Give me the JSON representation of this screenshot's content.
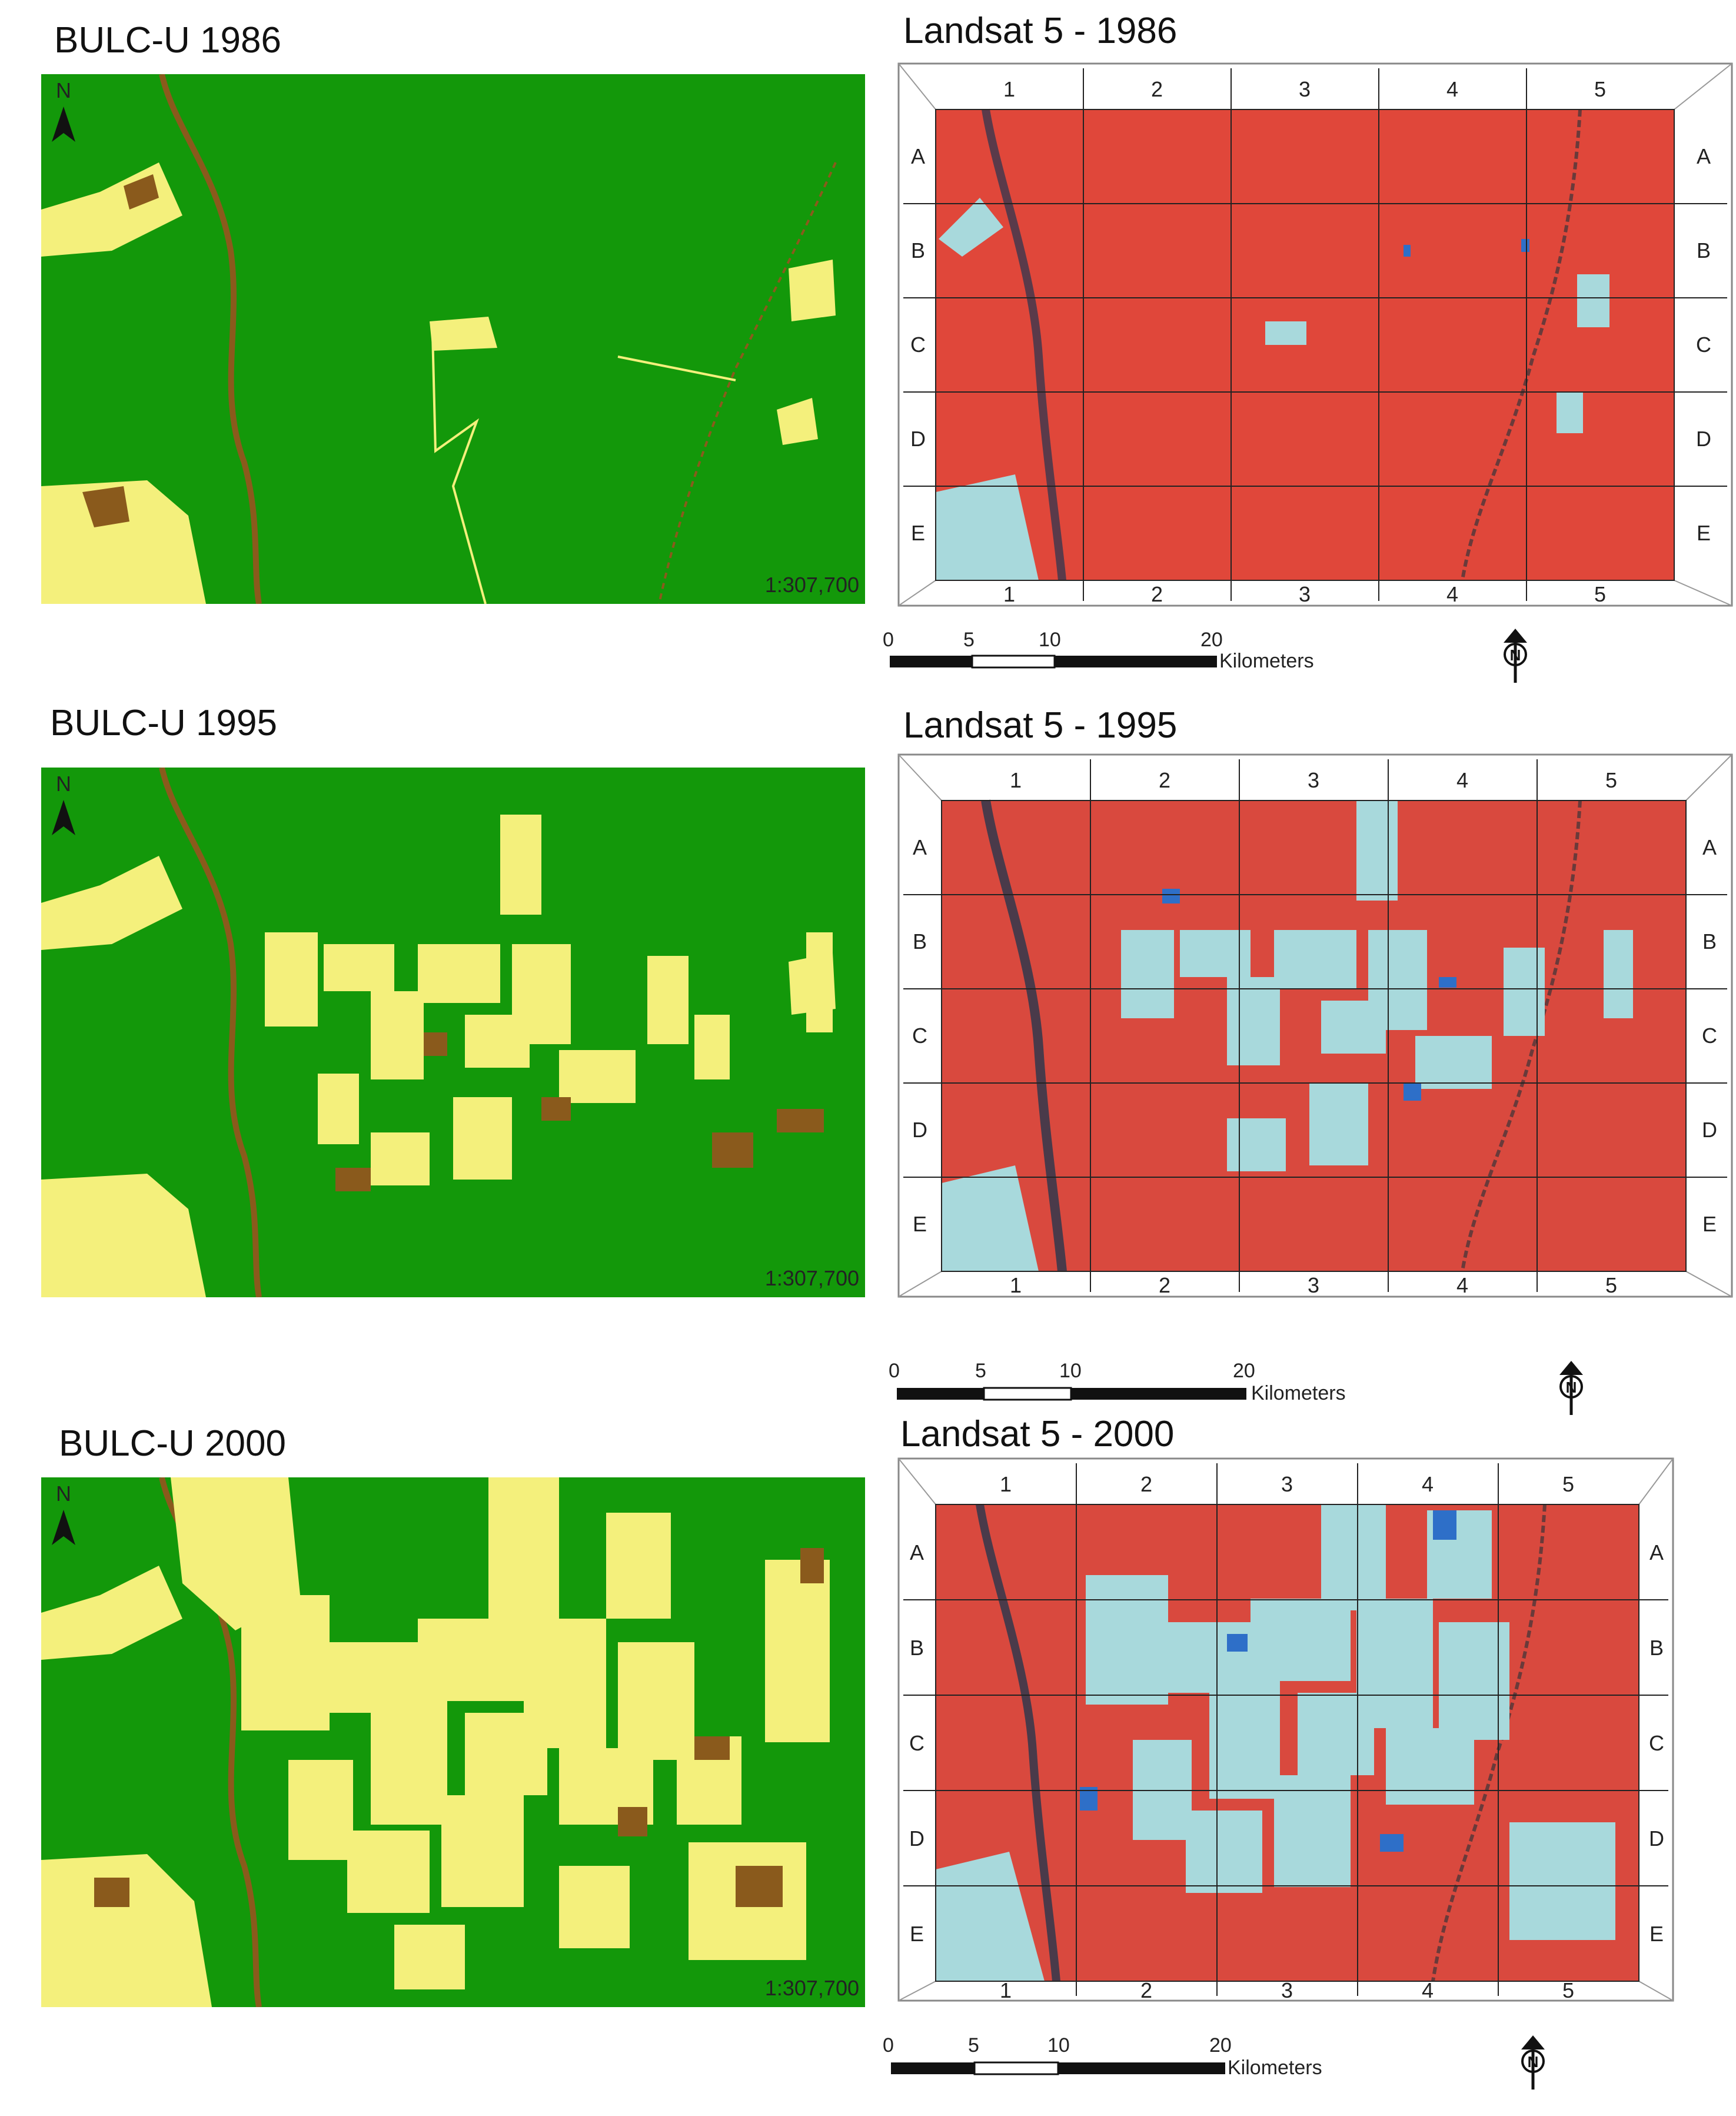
{
  "bulc": [
    {
      "title": "BULC-U 1986",
      "scale_text": "1:307,700",
      "north_letter": "N"
    },
    {
      "title": "BULC-U 1995",
      "scale_text": "1:307,700",
      "north_letter": "N"
    },
    {
      "title": "BULC-U 2000",
      "scale_text": "1:307,700",
      "north_letter": "N"
    }
  ],
  "landsat": [
    {
      "title": "Landsat 5 - 1986"
    },
    {
      "title": "Landsat 5 - 1995"
    },
    {
      "title": "Landsat 5 - 2000"
    }
  ],
  "grid": {
    "columns": [
      "1",
      "2",
      "3",
      "4",
      "5"
    ],
    "rows": [
      "A",
      "B",
      "C",
      "D",
      "E"
    ]
  },
  "scalebar": {
    "ticks": [
      "0",
      "5",
      "10",
      "20"
    ],
    "unit": "Kilometers",
    "north_letter": "N"
  },
  "colors": {
    "forest_green": "#13980a",
    "cleared_yellow": "#f4f07c",
    "bare_brown": "#8a5a1c",
    "landsat_red": "#e0473a",
    "landsat_cyan": "#a8d9dc",
    "landsat_blue": "#2e6fc8"
  }
}
